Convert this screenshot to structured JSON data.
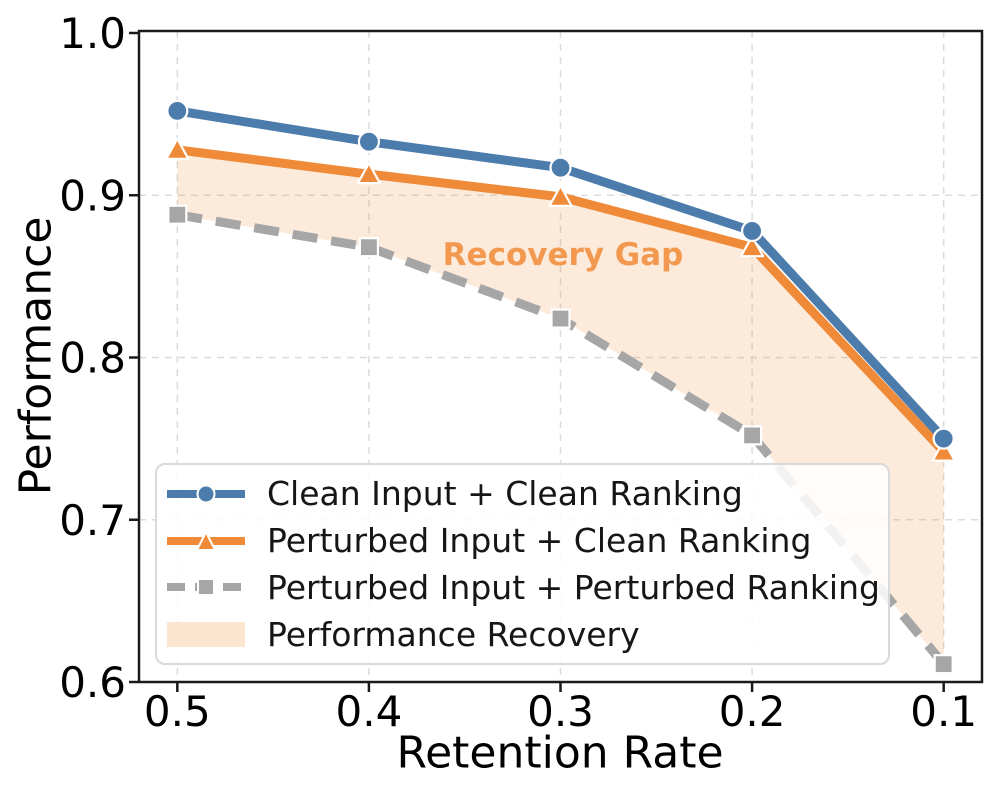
{
  "chart_data": {
    "type": "line",
    "title": "",
    "xlabel": "Retention Rate",
    "ylabel": "Performance",
    "x": [
      0.5,
      0.4,
      0.3,
      0.2,
      0.1
    ],
    "x_tick_labels": [
      "0.5",
      "0.4",
      "0.3",
      "0.2",
      "0.1"
    ],
    "y_ticks": [
      1.0,
      0.9,
      0.8,
      0.7,
      0.6
    ],
    "y_tick_labels": [
      "1.0",
      "0.9",
      "0.8",
      "0.7",
      "0.6"
    ],
    "xlim": [
      0.52,
      0.08
    ],
    "ylim": [
      0.6,
      1.0
    ],
    "x_axis_reversed": true,
    "grid": true,
    "series": [
      {
        "name": "Clean Input + Clean Ranking",
        "marker": "circle",
        "line_style": "solid",
        "color": "#4C7CAC",
        "values": [
          0.952,
          0.933,
          0.917,
          0.878,
          0.75
        ]
      },
      {
        "name": "Perturbed Input + Clean Ranking",
        "marker": "triangle",
        "line_style": "solid",
        "color": "#EF8A38",
        "values": [
          0.928,
          0.913,
          0.899,
          0.868,
          0.742
        ]
      },
      {
        "name": "Perturbed Input + Perturbed Ranking",
        "marker": "square",
        "line_style": "dashed",
        "color": "#A6A6A6",
        "values": [
          0.888,
          0.868,
          0.824,
          0.752,
          0.611
        ]
      }
    ],
    "fill_between": {
      "label": "Performance Recovery",
      "upper_series": "Perturbed Input + Clean Ranking",
      "lower_series": "Perturbed Input + Perturbed Ranking",
      "color": "#EF8A38",
      "opacity": 0.18,
      "patch_color": "#FBE5CF"
    },
    "annotation": {
      "text": "Recovery Gap",
      "x": 0.3,
      "y": 0.863,
      "color": "#F2994F"
    },
    "legend": {
      "position": "lower-left",
      "items": [
        {
          "label": "Clean Input + Clean Ranking",
          "swatch": "line-circle",
          "color": "#4C7CAC"
        },
        {
          "label": "Perturbed Input + Clean Ranking",
          "swatch": "line-triangle",
          "color": "#EF8A38"
        },
        {
          "label": "Perturbed Input + Perturbed Ranking",
          "swatch": "dashed-line-square",
          "color": "#A6A6A6"
        },
        {
          "label": "Performance Recovery",
          "swatch": "patch",
          "color": "#FBE5CF"
        }
      ]
    },
    "style": {
      "grid_color": "#DCDCDC",
      "spine_color": "#1a1a1a",
      "tick_label_size": 42,
      "line_width": 9
    }
  }
}
